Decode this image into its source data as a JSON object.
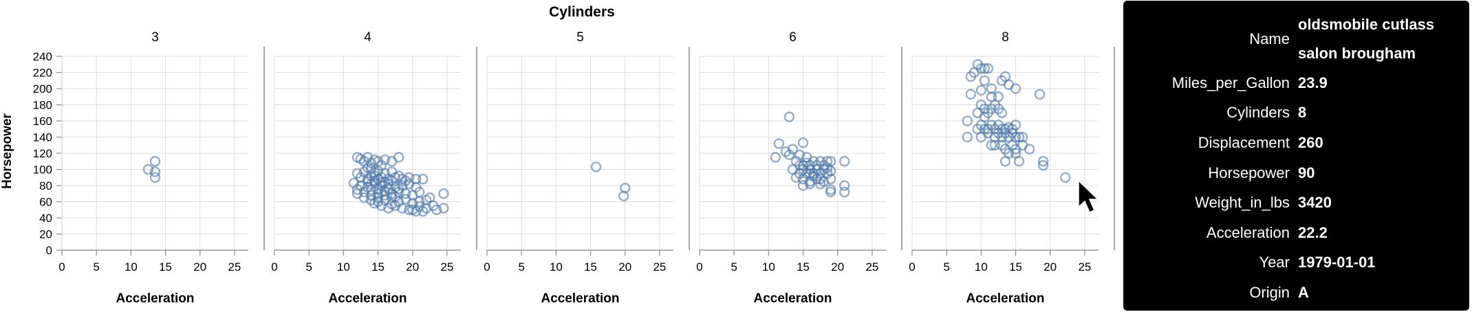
{
  "chart_data": {
    "type": "scatter",
    "title": "Cylinders",
    "facets": [
      "3",
      "4",
      "5",
      "6",
      "8"
    ],
    "xlabel": "Acceleration",
    "ylabel": "Horsepower",
    "xlim": [
      0,
      27
    ],
    "ylim": [
      0,
      240
    ],
    "x_ticks": [
      "0",
      "5",
      "10",
      "15",
      "20",
      "25"
    ],
    "y_ticks": [
      "0",
      "20",
      "40",
      "60",
      "80",
      "100",
      "120",
      "140",
      "160",
      "180",
      "200",
      "220",
      "240"
    ],
    "grid": true,
    "color": "#4c78a8",
    "points": {
      "3": [
        [
          12.5,
          100
        ],
        [
          13.5,
          97
        ],
        [
          13.5,
          110
        ],
        [
          13.5,
          90
        ]
      ],
      "4": [
        [
          12.0,
          115
        ],
        [
          12.5,
          113
        ],
        [
          13.0,
          110
        ],
        [
          13.5,
          115
        ],
        [
          14.0,
          108
        ],
        [
          14.5,
          112
        ],
        [
          15.0,
          110
        ],
        [
          15.5,
          105
        ],
        [
          16.0,
          112
        ],
        [
          17.0,
          110
        ],
        [
          18.0,
          115
        ],
        [
          12.0,
          95
        ],
        [
          13.0,
          97
        ],
        [
          14.0,
          100
        ],
        [
          15.0,
          98
        ],
        [
          16.0,
          95
        ],
        [
          17.0,
          97
        ],
        [
          18.0,
          92
        ],
        [
          12.5,
          90
        ],
        [
          13.5,
          88
        ],
        [
          14.5,
          92
        ],
        [
          15.5,
          90
        ],
        [
          16.5,
          88
        ],
        [
          17.5,
          90
        ],
        [
          18.5,
          88
        ],
        [
          19.5,
          90
        ],
        [
          20.5,
          88
        ],
        [
          11.5,
          83
        ],
        [
          12.5,
          80
        ],
        [
          13.5,
          85
        ],
        [
          14.5,
          83
        ],
        [
          15.5,
          80
        ],
        [
          16.5,
          82
        ],
        [
          17.5,
          78
        ],
        [
          18.5,
          80
        ],
        [
          19.5,
          82
        ],
        [
          20.5,
          78
        ],
        [
          21.5,
          88
        ],
        [
          12.0,
          75
        ],
        [
          13.0,
          72
        ],
        [
          14.0,
          75
        ],
        [
          15.0,
          70
        ],
        [
          16.0,
          73
        ],
        [
          17.0,
          70
        ],
        [
          18.0,
          72
        ],
        [
          19.0,
          70
        ],
        [
          20.0,
          68
        ],
        [
          21.0,
          72
        ],
        [
          12.0,
          70
        ],
        [
          13.0,
          65
        ],
        [
          14.0,
          68
        ],
        [
          15.0,
          65
        ],
        [
          16.0,
          62
        ],
        [
          17.0,
          65
        ],
        [
          18.0,
          60
        ],
        [
          19.0,
          63
        ],
        [
          20.0,
          58
        ],
        [
          21.0,
          60
        ],
        [
          22.0,
          62
        ],
        [
          14.5,
          58
        ],
        [
          15.5,
          55
        ],
        [
          16.5,
          52
        ],
        [
          17.5,
          55
        ],
        [
          18.5,
          52
        ],
        [
          19.5,
          50
        ],
        [
          20.5,
          48
        ],
        [
          21.5,
          48
        ],
        [
          22.0,
          52
        ],
        [
          23.0,
          55
        ],
        [
          23.5,
          50
        ],
        [
          24.5,
          52
        ],
        [
          24.5,
          70
        ],
        [
          22.5,
          65
        ],
        [
          13.5,
          78
        ],
        [
          14.0,
          82
        ],
        [
          14.5,
          86
        ],
        [
          15.0,
          76
        ],
        [
          15.5,
          72
        ],
        [
          16.0,
          84
        ],
        [
          16.5,
          76
        ],
        [
          17.0,
          86
        ],
        [
          14.0,
          92
        ],
        [
          15.0,
          88
        ],
        [
          16.0,
          68
        ],
        [
          13.5,
          102
        ],
        [
          14.5,
          96
        ],
        [
          15.5,
          84
        ],
        [
          17.5,
          66
        ],
        [
          18.0,
          76
        ],
        [
          19.0,
          86
        ],
        [
          14.0,
          62
        ],
        [
          15.0,
          60
        ],
        [
          20.0,
          50
        ],
        [
          21.0,
          54
        ],
        [
          17.0,
          57
        ]
      ],
      "5": [
        [
          15.8,
          103
        ],
        [
          20.0,
          77
        ],
        [
          19.8,
          67
        ]
      ],
      "6": [
        [
          11.0,
          115
        ],
        [
          11.5,
          132
        ],
        [
          12.5,
          122
        ],
        [
          13.0,
          118
        ],
        [
          13.5,
          125
        ],
        [
          13.0,
          165
        ],
        [
          15.0,
          133
        ],
        [
          14.0,
          110
        ],
        [
          14.5,
          105
        ],
        [
          15.0,
          100
        ],
        [
          15.5,
          108
        ],
        [
          16.0,
          105
        ],
        [
          16.5,
          110
        ],
        [
          17.0,
          100
        ],
        [
          17.5,
          110
        ],
        [
          18.0,
          105
        ],
        [
          18.5,
          110
        ],
        [
          19.0,
          110
        ],
        [
          21.0,
          110
        ],
        [
          13.5,
          100
        ],
        [
          14.5,
          95
        ],
        [
          15.5,
          95
        ],
        [
          16.5,
          95
        ],
        [
          17.5,
          95
        ],
        [
          18.5,
          95
        ],
        [
          19.0,
          98
        ],
        [
          14.0,
          90
        ],
        [
          15.0,
          88
        ],
        [
          16.0,
          85
        ],
        [
          17.0,
          88
        ],
        [
          18.0,
          85
        ],
        [
          19.0,
          88
        ],
        [
          15.0,
          80
        ],
        [
          16.0,
          82
        ],
        [
          17.5,
          82
        ],
        [
          19.0,
          75
        ],
        [
          19.0,
          72
        ],
        [
          21.0,
          72
        ],
        [
          21.0,
          80
        ],
        [
          16.0,
          100
        ],
        [
          17.0,
          105
        ],
        [
          15.5,
          115
        ],
        [
          14.5,
          118
        ],
        [
          16.5,
          92
        ],
        [
          18.0,
          100
        ],
        [
          15.0,
          105
        ],
        [
          16.0,
          95
        ],
        [
          17.5,
          88
        ],
        [
          18.5,
          102
        ]
      ],
      "8": [
        [
          8.5,
          215
        ],
        [
          9.0,
          220
        ],
        [
          9.5,
          230
        ],
        [
          10.0,
          225
        ],
        [
          10.5,
          225
        ],
        [
          8.5,
          193
        ],
        [
          10.0,
          198
        ],
        [
          10.5,
          210
        ],
        [
          11.0,
          225
        ],
        [
          11.5,
          200
        ],
        [
          11.5,
          190
        ],
        [
          13.0,
          210
        ],
        [
          13.5,
          215
        ],
        [
          14.0,
          205
        ],
        [
          15.0,
          200
        ],
        [
          18.5,
          193
        ],
        [
          10.0,
          180
        ],
        [
          10.5,
          175
        ],
        [
          11.0,
          170
        ],
        [
          11.5,
          175
        ],
        [
          12.0,
          180
        ],
        [
          12.5,
          175
        ],
        [
          13.0,
          170
        ],
        [
          12.5,
          190
        ],
        [
          9.5,
          170
        ],
        [
          10.5,
          165
        ],
        [
          8.0,
          160
        ],
        [
          9.5,
          150
        ],
        [
          10.0,
          155
        ],
        [
          10.5,
          150
        ],
        [
          11.0,
          150
        ],
        [
          11.5,
          155
        ],
        [
          12.0,
          150
        ],
        [
          12.5,
          155
        ],
        [
          13.0,
          150
        ],
        [
          13.5,
          150
        ],
        [
          14.0,
          152
        ],
        [
          14.5,
          150
        ],
        [
          15.0,
          155
        ],
        [
          12.0,
          140
        ],
        [
          12.5,
          145
        ],
        [
          13.0,
          140
        ],
        [
          13.5,
          145
        ],
        [
          14.0,
          140
        ],
        [
          14.5,
          145
        ],
        [
          15.0,
          140
        ],
        [
          15.5,
          140
        ],
        [
          16.0,
          140
        ],
        [
          8.0,
          140
        ],
        [
          10.0,
          140
        ],
        [
          11.0,
          145
        ],
        [
          11.5,
          130
        ],
        [
          12.0,
          130
        ],
        [
          13.0,
          130
        ],
        [
          13.5,
          125
        ],
        [
          14.0,
          120
        ],
        [
          14.5,
          130
        ],
        [
          15.0,
          125
        ],
        [
          16.0,
          130
        ],
        [
          17.0,
          125
        ],
        [
          13.5,
          110
        ],
        [
          15.0,
          120
        ],
        [
          15.5,
          110
        ],
        [
          19.0,
          110
        ],
        [
          19.0,
          105
        ],
        [
          22.2,
          90
        ]
      ]
    }
  },
  "tooltip": {
    "rows": [
      {
        "key": "Name",
        "value": "oldsmobile cutlass salon brougham"
      },
      {
        "key": "Miles_per_Gallon",
        "value": "23.9"
      },
      {
        "key": "Cylinders",
        "value": "8"
      },
      {
        "key": "Displacement",
        "value": "260"
      },
      {
        "key": "Horsepower",
        "value": "90"
      },
      {
        "key": "Weight_in_lbs",
        "value": "3420"
      },
      {
        "key": "Acceleration",
        "value": "22.2"
      },
      {
        "key": "Year",
        "value": "1979-01-01"
      },
      {
        "key": "Origin",
        "value": "A"
      }
    ]
  },
  "cursor": {
    "icon": "mouse-pointer-icon"
  }
}
